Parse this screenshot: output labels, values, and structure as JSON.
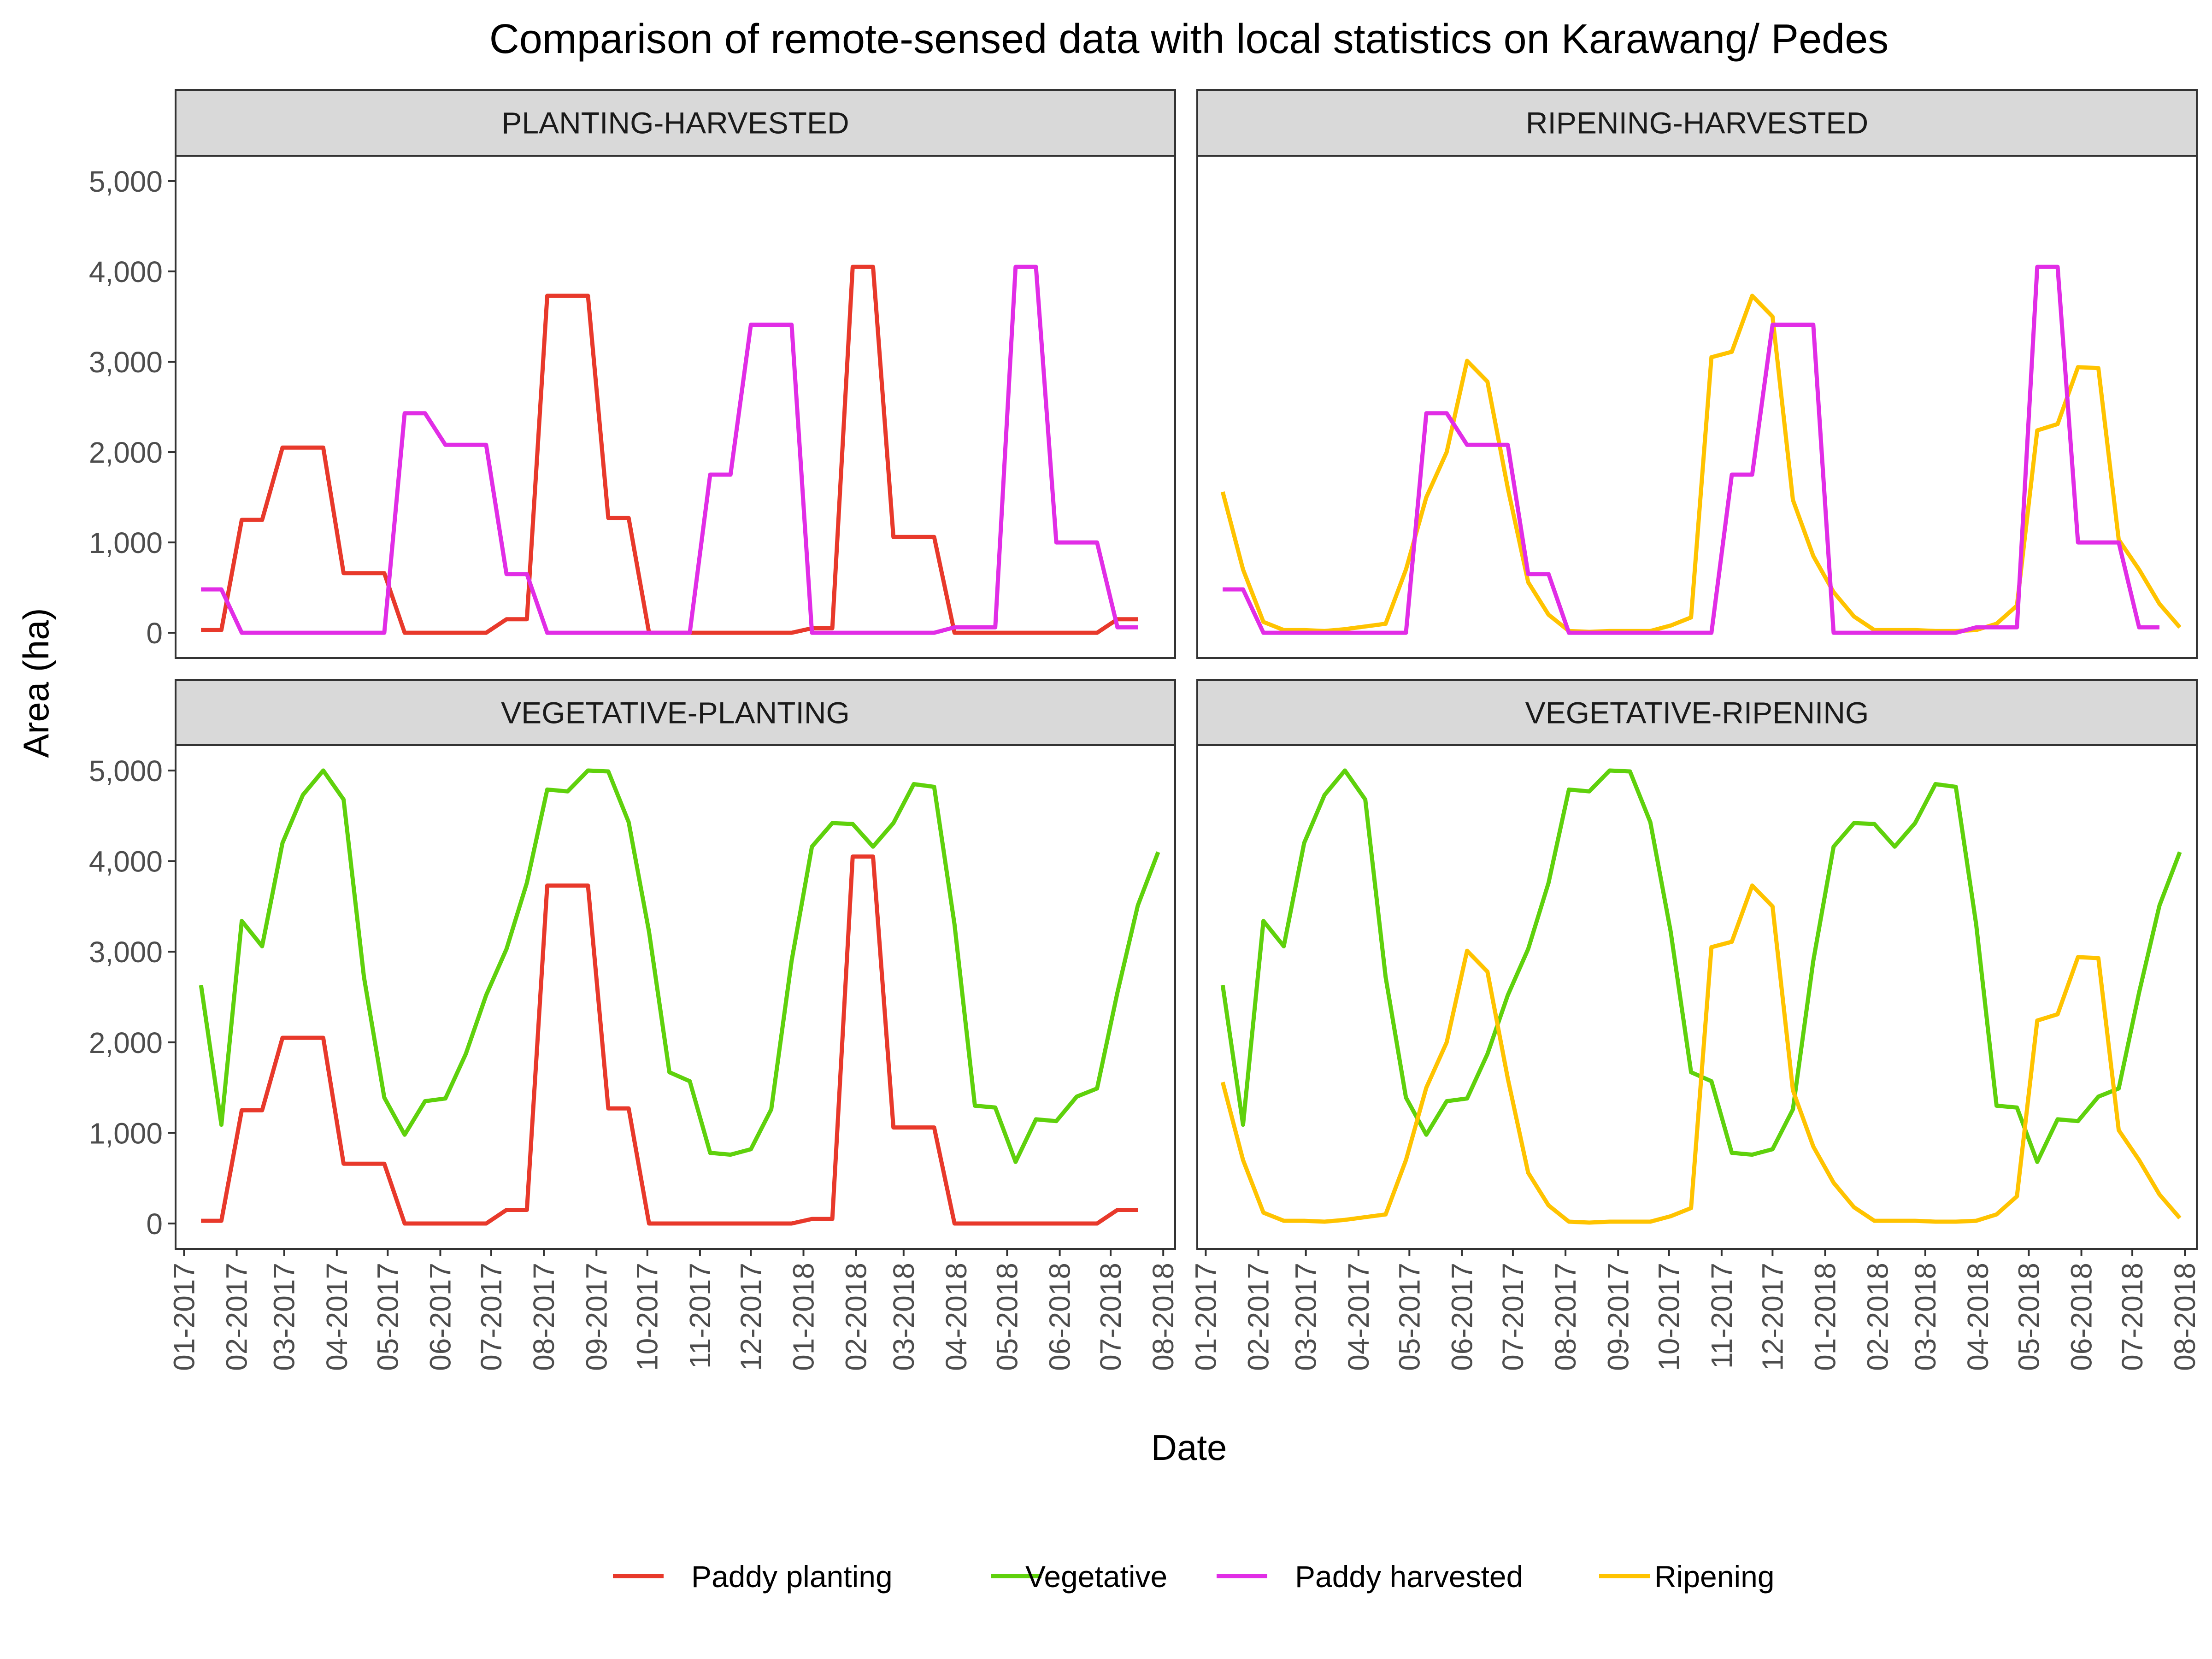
{
  "chart_data": {
    "type": "line",
    "title": "Comparison of remote-sensed data with local statistics on Karawang/ Pedes",
    "xlabel": "Date",
    "ylabel": "Area (ha)",
    "ylim": [
      -280,
      5280
    ],
    "y_ticks": [
      0,
      1000,
      2000,
      3000,
      4000,
      5000
    ],
    "y_tick_labels": [
      "0",
      "1,000",
      "2,000",
      "3,000",
      "4,000",
      "5,000"
    ],
    "x_range": [
      "2016-12-27",
      "2018-08-08"
    ],
    "x_tick_dates": [
      "2017-01-01",
      "2017-02-01",
      "2017-03-01",
      "2017-04-01",
      "2017-05-01",
      "2017-06-01",
      "2017-07-01",
      "2017-08-01",
      "2017-09-01",
      "2017-10-01",
      "2017-11-01",
      "2017-12-01",
      "2018-01-01",
      "2018-02-01",
      "2018-03-01",
      "2018-04-01",
      "2018-05-01",
      "2018-06-01",
      "2018-07-01",
      "2018-08-01"
    ],
    "x_tick_labels": [
      "01-2017",
      "02-2017",
      "03-2017",
      "04-2017",
      "05-2017",
      "06-2017",
      "07-2017",
      "08-2017",
      "09-2017",
      "10-2017",
      "11-2017",
      "12-2017",
      "01-2018",
      "02-2018",
      "03-2018",
      "04-2018",
      "05-2018",
      "06-2018",
      "07-2018",
      "08-2018"
    ],
    "grid": false,
    "legend_position": "bottom",
    "legend": [
      {
        "key": "planting",
        "label": "Paddy planting",
        "color": "#e8392b"
      },
      {
        "key": "vegetative",
        "label": "Vegetative",
        "color": "#5fd10c"
      },
      {
        "key": "harvested",
        "label": "Paddy harvested",
        "color": "#e12de6"
      },
      {
        "key": "ripening",
        "label": "Ripening",
        "color": "#ffc300"
      }
    ],
    "panels": [
      {
        "strip": "PLANTING-HARVESTED",
        "series": [
          "planting",
          "harvested"
        ]
      },
      {
        "strip": "RIPENING-HARVESTED",
        "series": [
          "ripening",
          "harvested"
        ]
      },
      {
        "strip": "VEGETATIVE-PLANTING",
        "series": [
          "vegetative",
          "planting"
        ]
      },
      {
        "strip": "VEGETATIVE-RIPENING",
        "series": [
          "vegetative",
          "ripening"
        ]
      }
    ],
    "series": [
      {
        "key": "planting",
        "name": "Paddy planting",
        "color": "#e8392b",
        "x": [
          "2017-01-11",
          "2017-01-23",
          "2017-02-04",
          "2017-02-16",
          "2017-02-28",
          "2017-03-12",
          "2017-03-24",
          "2017-04-05",
          "2017-04-17",
          "2017-04-29",
          "2017-05-11",
          "2017-05-23",
          "2017-06-04",
          "2017-06-16",
          "2017-06-28",
          "2017-07-10",
          "2017-07-22",
          "2017-08-03",
          "2017-08-15",
          "2017-08-27",
          "2017-09-08",
          "2017-09-20",
          "2017-10-02",
          "2017-10-14",
          "2017-10-26",
          "2017-11-07",
          "2017-11-19",
          "2017-12-01",
          "2017-12-13",
          "2017-12-25",
          "2018-01-06",
          "2018-01-18",
          "2018-01-30",
          "2018-02-11",
          "2018-02-23",
          "2018-03-07",
          "2018-03-19",
          "2018-03-31",
          "2018-04-12",
          "2018-04-24",
          "2018-05-06",
          "2018-05-18",
          "2018-05-30",
          "2018-06-11",
          "2018-06-23",
          "2018-07-05",
          "2018-07-17"
        ],
        "values": [
          30,
          30,
          1250,
          1250,
          2050,
          2050,
          2050,
          660,
          660,
          660,
          0,
          0,
          0,
          0,
          0,
          150,
          150,
          3730,
          3730,
          3730,
          1270,
          1270,
          0,
          0,
          0,
          0,
          0,
          0,
          0,
          0,
          50,
          50,
          4050,
          4050,
          1060,
          1060,
          1060,
          0,
          0,
          0,
          0,
          0,
          0,
          0,
          0,
          150,
          150
        ]
      },
      {
        "key": "harvested",
        "name": "Paddy harvested",
        "color": "#e12de6",
        "x": [
          "2017-01-11",
          "2017-01-23",
          "2017-02-04",
          "2017-02-16",
          "2017-02-28",
          "2017-03-12",
          "2017-03-24",
          "2017-04-05",
          "2017-04-17",
          "2017-04-29",
          "2017-05-11",
          "2017-05-23",
          "2017-06-04",
          "2017-06-16",
          "2017-06-28",
          "2017-07-10",
          "2017-07-22",
          "2017-08-03",
          "2017-08-15",
          "2017-08-27",
          "2017-09-08",
          "2017-09-20",
          "2017-10-02",
          "2017-10-14",
          "2017-10-26",
          "2017-11-07",
          "2017-11-19",
          "2017-12-01",
          "2017-12-13",
          "2017-12-25",
          "2018-01-06",
          "2018-01-18",
          "2018-01-30",
          "2018-02-11",
          "2018-02-23",
          "2018-03-07",
          "2018-03-19",
          "2018-03-31",
          "2018-04-12",
          "2018-04-24",
          "2018-05-06",
          "2018-05-18",
          "2018-05-30",
          "2018-06-11",
          "2018-06-23",
          "2018-07-05",
          "2018-07-17"
        ],
        "values": [
          480,
          480,
          0,
          0,
          0,
          0,
          0,
          0,
          0,
          0,
          2430,
          2430,
          2080,
          2080,
          2080,
          650,
          650,
          0,
          0,
          0,
          0,
          0,
          0,
          0,
          0,
          1750,
          1750,
          3410,
          3410,
          3410,
          0,
          0,
          0,
          0,
          0,
          0,
          0,
          60,
          60,
          60,
          4050,
          4050,
          1000,
          1000,
          1000,
          60,
          60
        ]
      },
      {
        "key": "vegetative",
        "name": "Vegetative",
        "color": "#5fd10c",
        "x": [
          "2017-01-11",
          "2017-01-23",
          "2017-02-04",
          "2017-02-16",
          "2017-02-28",
          "2017-03-12",
          "2017-03-24",
          "2017-04-05",
          "2017-04-17",
          "2017-04-29",
          "2017-05-11",
          "2017-05-23",
          "2017-06-04",
          "2017-06-16",
          "2017-06-28",
          "2017-07-10",
          "2017-07-22",
          "2017-08-03",
          "2017-08-15",
          "2017-08-27",
          "2017-09-08",
          "2017-09-20",
          "2017-10-02",
          "2017-10-14",
          "2017-10-26",
          "2017-11-07",
          "2017-11-19",
          "2017-12-01",
          "2017-12-13",
          "2017-12-25",
          "2018-01-06",
          "2018-01-18",
          "2018-01-30",
          "2018-02-11",
          "2018-02-23",
          "2018-03-07",
          "2018-03-19",
          "2018-03-31",
          "2018-04-12",
          "2018-04-24",
          "2018-05-06",
          "2018-05-18",
          "2018-05-30",
          "2018-06-11",
          "2018-06-23",
          "2018-07-05",
          "2018-07-17",
          "2018-07-29"
        ],
        "values": [
          2630,
          1090,
          3340,
          3060,
          4200,
          4730,
          5000,
          4680,
          2720,
          1390,
          980,
          1350,
          1380,
          1870,
          2520,
          3030,
          3760,
          4790,
          4770,
          5000,
          4990,
          4430,
          3220,
          1670,
          1570,
          780,
          760,
          820,
          1260,
          2900,
          4160,
          4420,
          4410,
          4160,
          4420,
          4850,
          4820,
          3300,
          1300,
          1280,
          680,
          1150,
          1130,
          1400,
          1490,
          2550,
          3510,
          4100
        ]
      },
      {
        "key": "ripening",
        "name": "Ripening",
        "color": "#ffc300",
        "x": [
          "2017-01-11",
          "2017-01-23",
          "2017-02-04",
          "2017-02-16",
          "2017-02-28",
          "2017-03-12",
          "2017-03-24",
          "2017-04-05",
          "2017-04-17",
          "2017-04-29",
          "2017-05-11",
          "2017-05-23",
          "2017-06-04",
          "2017-06-16",
          "2017-06-28",
          "2017-07-10",
          "2017-07-22",
          "2017-08-03",
          "2017-08-15",
          "2017-08-27",
          "2017-09-08",
          "2017-09-20",
          "2017-10-02",
          "2017-10-14",
          "2017-10-26",
          "2017-11-07",
          "2017-11-19",
          "2017-12-01",
          "2017-12-13",
          "2017-12-25",
          "2018-01-06",
          "2018-01-18",
          "2018-01-30",
          "2018-02-11",
          "2018-02-23",
          "2018-03-07",
          "2018-03-19",
          "2018-03-31",
          "2018-04-12",
          "2018-04-24",
          "2018-05-06",
          "2018-05-18",
          "2018-05-30",
          "2018-06-11",
          "2018-06-23",
          "2018-07-05",
          "2018-07-17",
          "2018-07-29"
        ],
        "values": [
          1560,
          700,
          120,
          30,
          30,
          20,
          40,
          70,
          100,
          700,
          1500,
          2000,
          3010,
          2780,
          1600,
          560,
          200,
          20,
          10,
          20,
          20,
          20,
          80,
          170,
          3050,
          3110,
          3730,
          3500,
          1470,
          850,
          450,
          180,
          30,
          30,
          30,
          20,
          20,
          30,
          100,
          300,
          2240,
          2310,
          2940,
          2930,
          1030,
          700,
          320,
          60
        ]
      }
    ]
  }
}
